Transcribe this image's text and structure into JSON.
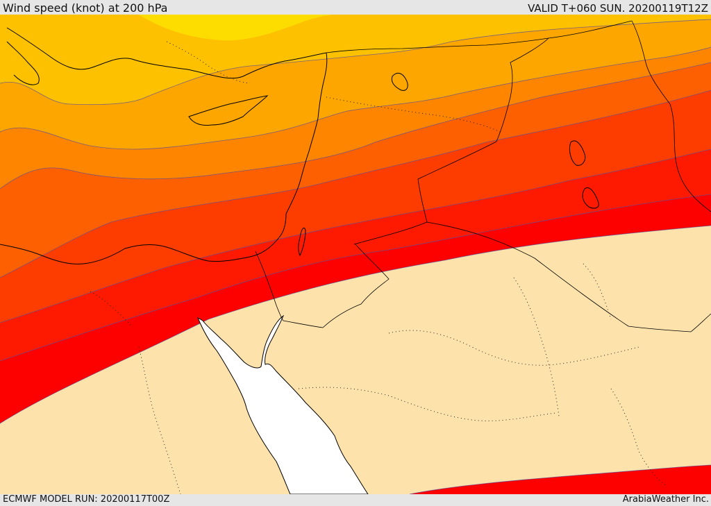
{
  "header": {
    "title": "Wind speed (knot) at 200 hPa",
    "valid": "VALID T+060 SUN. 20200119T12Z"
  },
  "footer": {
    "model_run": "ECMWF MODEL RUN: 20200117T00Z",
    "credit": "ArabiaWeather Inc."
  },
  "map": {
    "field": "wind speed at 200 hPa",
    "color_bands": [
      "#fde3ab",
      "#fd0000",
      "#fd1a00",
      "#fd3c00",
      "#fd6000",
      "#fd8500",
      "#fda600",
      "#fdc100",
      "#fddd00"
    ],
    "water_color": "#ffffff"
  }
}
